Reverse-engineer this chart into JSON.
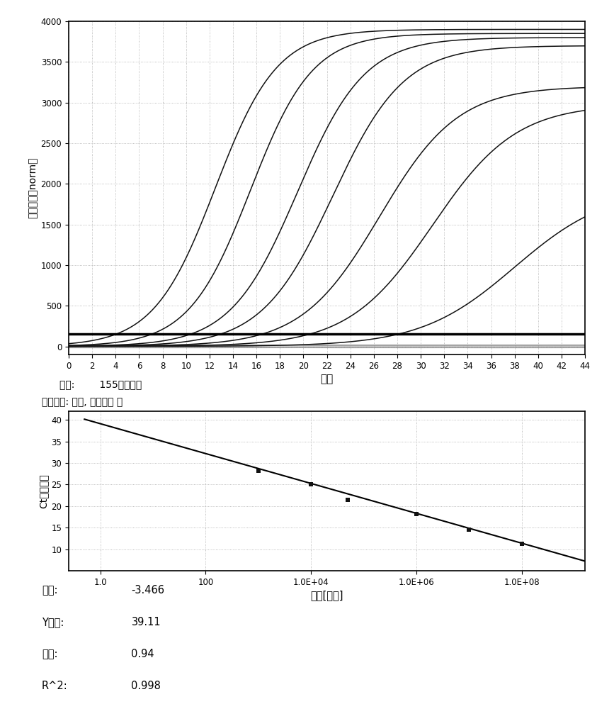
{
  "top_chart": {
    "xlabel": "循环",
    "ylabel": "荧光强度（norm）",
    "xlim": [
      0,
      44
    ],
    "ylim": [
      -100,
      4000
    ],
    "yticks": [
      0,
      500,
      1000,
      1500,
      2000,
      2500,
      3000,
      3500,
      4000
    ],
    "xticks": [
      0,
      2,
      4,
      6,
      8,
      10,
      12,
      14,
      16,
      18,
      20,
      22,
      24,
      26,
      28,
      30,
      32,
      34,
      36,
      38,
      40,
      42,
      44
    ],
    "threshold": 155,
    "curves": [
      {
        "ct": 12.5,
        "plateau": 3900,
        "k": 0.38
      },
      {
        "ct": 15.5,
        "plateau": 3850,
        "k": 0.38
      },
      {
        "ct": 19.5,
        "plateau": 3800,
        "k": 0.35
      },
      {
        "ct": 22.5,
        "plateau": 3700,
        "k": 0.33
      },
      {
        "ct": 26.5,
        "plateau": 3200,
        "k": 0.3
      },
      {
        "ct": 31.0,
        "plateau": 2980,
        "k": 0.28
      },
      {
        "ct": 38.0,
        "plateau": 1950,
        "k": 0.25
      }
    ],
    "threshold_color": "#000000",
    "background_color": "#ffffff",
    "grid_color": "#aaaaaa"
  },
  "annotation": {
    "line1": "阈値:        155（噪带）",
    "line2": "基线设定: 自动, 漂移校正 关"
  },
  "bottom_chart": {
    "xlabel": "数量[拷贝]",
    "ylabel": "Ct［循环］",
    "ylim": [
      5,
      42
    ],
    "yticks": [
      10,
      15,
      20,
      25,
      30,
      35,
      40
    ],
    "xtick_positions": [
      0,
      2,
      4,
      6,
      8
    ],
    "xtick_labels": [
      "1.0",
      "100",
      "1.0E+04",
      "1.0E+06",
      "1.0E+08"
    ],
    "slope": -3.466,
    "intercept": 39.11,
    "data_points": [
      {
        "log_x": 3.0,
        "y": 28.2
      },
      {
        "log_x": 4.0,
        "y": 25.0
      },
      {
        "log_x": 4.7,
        "y": 21.5
      },
      {
        "log_x": 6.0,
        "y": 18.2
      },
      {
        "log_x": 7.0,
        "y": 14.5
      },
      {
        "log_x": 8.0,
        "y": 11.2
      }
    ],
    "line_x_start": -0.3,
    "line_x_end": 9.3,
    "background_color": "#ffffff",
    "grid_color": "#aaaaaa",
    "point_color": "#111111",
    "line_color": "#000000"
  },
  "stats": [
    {
      "label": "斜率:",
      "value": "-3.466"
    },
    {
      "label": "Y截距:",
      "value": "39.11"
    },
    {
      "label": "效率:",
      "value": "0.94"
    },
    {
      "label": "R^2:",
      "value": "0.998"
    }
  ]
}
